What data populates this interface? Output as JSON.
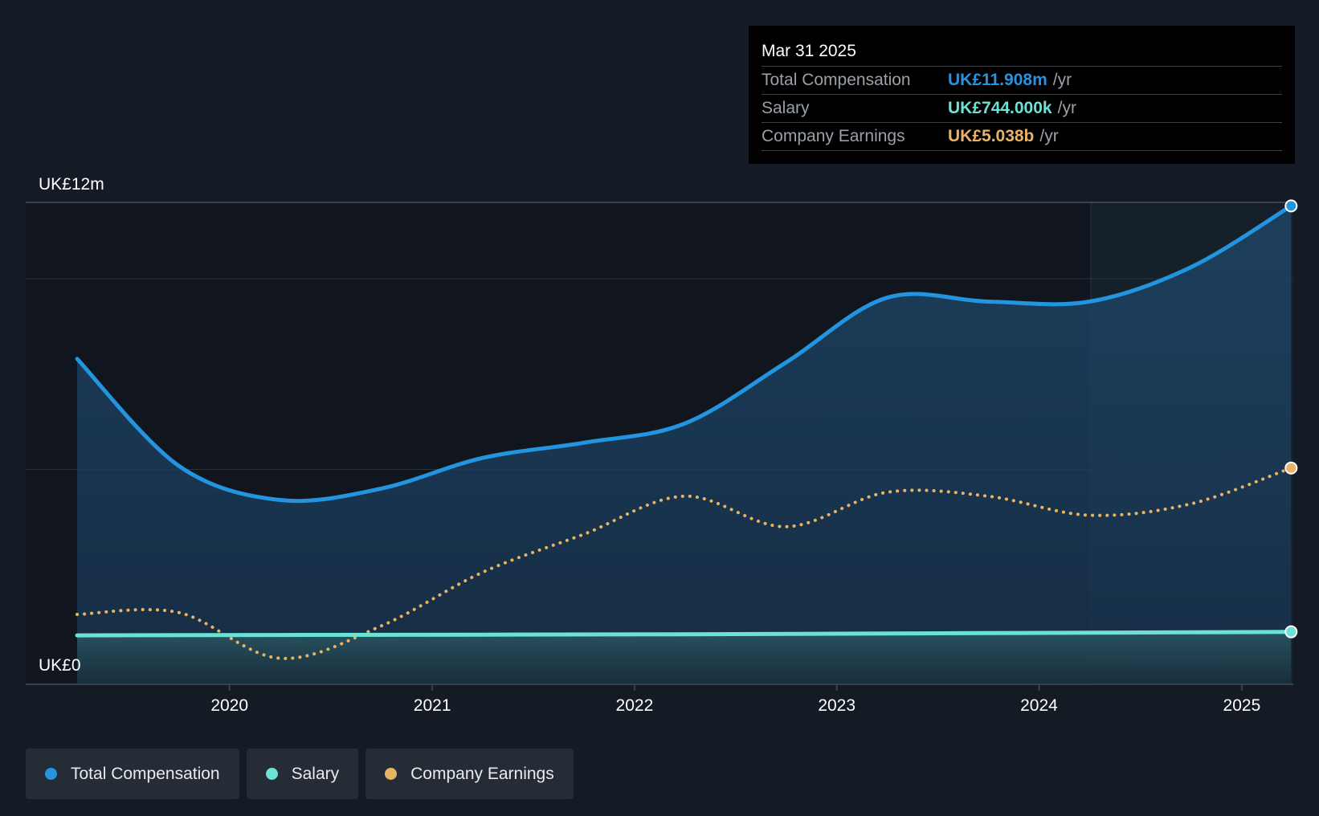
{
  "tooltip": {
    "date": "Mar 31 2025",
    "rows": [
      {
        "label": "Total Compensation",
        "value": "UK£11.908m",
        "unit": "/yr",
        "color": "#2394df"
      },
      {
        "label": "Salary",
        "value": "UK£744.000k",
        "unit": "/yr",
        "color": "#6ce2d4"
      },
      {
        "label": "Company Earnings",
        "value": "UK£5.038b",
        "unit": "/yr",
        "color": "#e9b366"
      }
    ]
  },
  "legend": [
    {
      "label": "Total Compensation",
      "color": "#2394df"
    },
    {
      "label": "Salary",
      "color": "#6ce2d4"
    },
    {
      "label": "Company Earnings",
      "color": "#e9b366"
    }
  ],
  "chart_data": {
    "type": "line",
    "y_top_label": "UK£12m",
    "y_bottom_label": "UK£0",
    "ylim": [
      0,
      12
    ],
    "x_ticks": [
      "2020",
      "2021",
      "2022",
      "2023",
      "2024",
      "2025"
    ],
    "xlim": [
      "2019-04-01",
      "2025-04-01"
    ],
    "grid": true,
    "legend_position": "bottom-left",
    "series": [
      {
        "name": "Total Compensation",
        "unit": "UK£m",
        "color": "#2394df",
        "points": [
          [
            "2019-04-01",
            7.9
          ],
          [
            "2019-10-01",
            5.1
          ],
          [
            "2020-04-01",
            4.2
          ],
          [
            "2020-10-01",
            4.5
          ],
          [
            "2021-04-01",
            5.3
          ],
          [
            "2021-10-01",
            5.7
          ],
          [
            "2022-04-01",
            6.2
          ],
          [
            "2022-10-01",
            7.8
          ],
          [
            "2023-04-01",
            9.5
          ],
          [
            "2023-10-01",
            9.4
          ],
          [
            "2024-04-01",
            9.4
          ],
          [
            "2024-10-01",
            10.3
          ],
          [
            "2025-03-31",
            11.908
          ]
        ]
      },
      {
        "name": "Salary",
        "unit": "UK£m",
        "color": "#6ce2d4",
        "points": [
          [
            "2019-04-01",
            0.65
          ],
          [
            "2020-04-01",
            0.66
          ],
          [
            "2021-04-01",
            0.67
          ],
          [
            "2022-04-01",
            0.68
          ],
          [
            "2023-04-01",
            0.7
          ],
          [
            "2024-04-01",
            0.72
          ],
          [
            "2025-03-31",
            0.744
          ]
        ]
      },
      {
        "name": "Company Earnings",
        "unit": "UK£b",
        "color": "#e9b366",
        "dashed": true,
        "points": [
          [
            "2019-04-01",
            1.2
          ],
          [
            "2019-10-01",
            1.25
          ],
          [
            "2020-04-01",
            0.05
          ],
          [
            "2020-10-01",
            0.9
          ],
          [
            "2021-04-01",
            2.3
          ],
          [
            "2021-10-01",
            3.3
          ],
          [
            "2022-04-01",
            4.3
          ],
          [
            "2022-10-01",
            3.5
          ],
          [
            "2023-04-01",
            4.4
          ],
          [
            "2023-10-01",
            4.3
          ],
          [
            "2024-04-01",
            3.8
          ],
          [
            "2024-10-01",
            4.1
          ],
          [
            "2025-03-31",
            5.038
          ]
        ]
      }
    ]
  }
}
